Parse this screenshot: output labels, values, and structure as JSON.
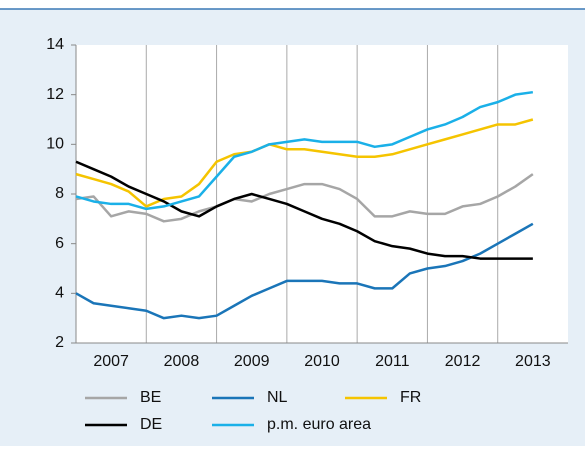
{
  "chart_data": {
    "type": "line",
    "x": [
      2007.0,
      2007.25,
      2007.5,
      2007.75,
      2008.0,
      2008.25,
      2008.5,
      2008.75,
      2009.0,
      2009.25,
      2009.5,
      2009.75,
      2010.0,
      2010.25,
      2010.5,
      2010.75,
      2011.0,
      2011.25,
      2011.5,
      2011.75,
      2012.0,
      2012.25,
      2012.5,
      2012.75,
      2013.0,
      2013.25,
      2013.5
    ],
    "series": [
      {
        "name": "BE",
        "color": "#a6a6a6",
        "values": [
          7.8,
          7.9,
          7.1,
          7.3,
          7.2,
          6.9,
          7.0,
          7.3,
          7.5,
          7.8,
          7.7,
          8.0,
          8.2,
          8.4,
          8.4,
          8.2,
          7.8,
          7.1,
          7.1,
          7.3,
          7.2,
          7.2,
          7.5,
          7.6,
          7.9,
          8.3,
          8.8
        ]
      },
      {
        "name": "NL",
        "color": "#1a75b8",
        "values": [
          4.0,
          3.6,
          3.5,
          3.4,
          3.3,
          3.0,
          3.1,
          3.0,
          3.1,
          3.5,
          3.9,
          4.2,
          4.5,
          4.5,
          4.5,
          4.4,
          4.4,
          4.2,
          4.2,
          4.8,
          5.0,
          5.1,
          5.3,
          5.6,
          6.0,
          6.4,
          6.8
        ]
      },
      {
        "name": "FR",
        "color": "#f5c400",
        "values": [
          8.8,
          8.6,
          8.4,
          8.1,
          7.5,
          7.8,
          7.9,
          8.4,
          9.3,
          9.6,
          9.7,
          10.0,
          9.8,
          9.8,
          9.7,
          9.6,
          9.5,
          9.5,
          9.6,
          9.8,
          10.0,
          10.2,
          10.4,
          10.6,
          10.8,
          10.8,
          11.0
        ]
      },
      {
        "name": "DE",
        "color": "#000000",
        "values": [
          9.3,
          9.0,
          8.7,
          8.3,
          8.0,
          7.7,
          7.3,
          7.1,
          7.5,
          7.8,
          8.0,
          7.8,
          7.6,
          7.3,
          7.0,
          6.8,
          6.5,
          6.1,
          5.9,
          5.8,
          5.6,
          5.5,
          5.5,
          5.4,
          5.4,
          5.4,
          5.4
        ]
      },
      {
        "name": "p.m. euro area",
        "color": "#1ab0e8",
        "values": [
          7.9,
          7.7,
          7.6,
          7.6,
          7.4,
          7.5,
          7.7,
          7.9,
          8.7,
          9.5,
          9.7,
          10.0,
          10.1,
          10.2,
          10.1,
          10.1,
          10.1,
          9.9,
          10.0,
          10.3,
          10.6,
          10.8,
          11.1,
          11.5,
          11.7,
          12.0,
          12.1
        ]
      }
    ],
    "xlim": [
      2007,
      2014
    ],
    "xticks": [
      {
        "value": 2007.5,
        "label": "2007"
      },
      {
        "value": 2008.5,
        "label": "2008"
      },
      {
        "value": 2009.5,
        "label": "2009"
      },
      {
        "value": 2010.5,
        "label": "2010"
      },
      {
        "value": 2011.5,
        "label": "2011"
      },
      {
        "value": 2012.5,
        "label": "2012"
      },
      {
        "value": 2013.5,
        "label": "2013"
      }
    ],
    "xgrid": [
      2008,
      2009,
      2010,
      2011,
      2012,
      2013
    ],
    "ylim": [
      2,
      14
    ],
    "yticks": [
      2,
      4,
      6,
      8,
      10,
      12,
      14
    ],
    "legend": "bottom"
  }
}
